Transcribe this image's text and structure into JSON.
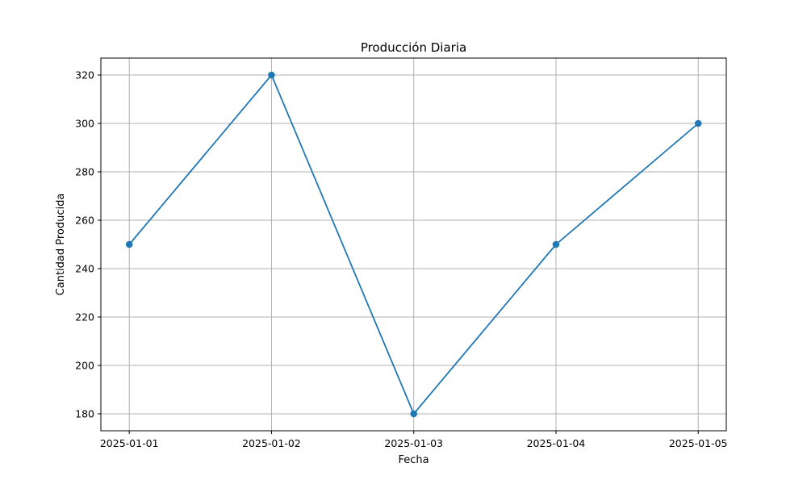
{
  "chart_data": {
    "type": "line",
    "title": "Producción Diaria",
    "xlabel": "Fecha",
    "ylabel": "Cantidad Producida",
    "categories": [
      "2025-01-01",
      "2025-01-02",
      "2025-01-03",
      "2025-01-04",
      "2025-01-05"
    ],
    "series": [
      {
        "values": [
          250,
          320,
          180,
          250,
          300
        ]
      }
    ],
    "ylim": [
      173,
      327
    ],
    "yticks": [
      180,
      200,
      220,
      240,
      260,
      280,
      300,
      320
    ],
    "grid": true,
    "markers": true,
    "line_color": "#1f77b4"
  }
}
